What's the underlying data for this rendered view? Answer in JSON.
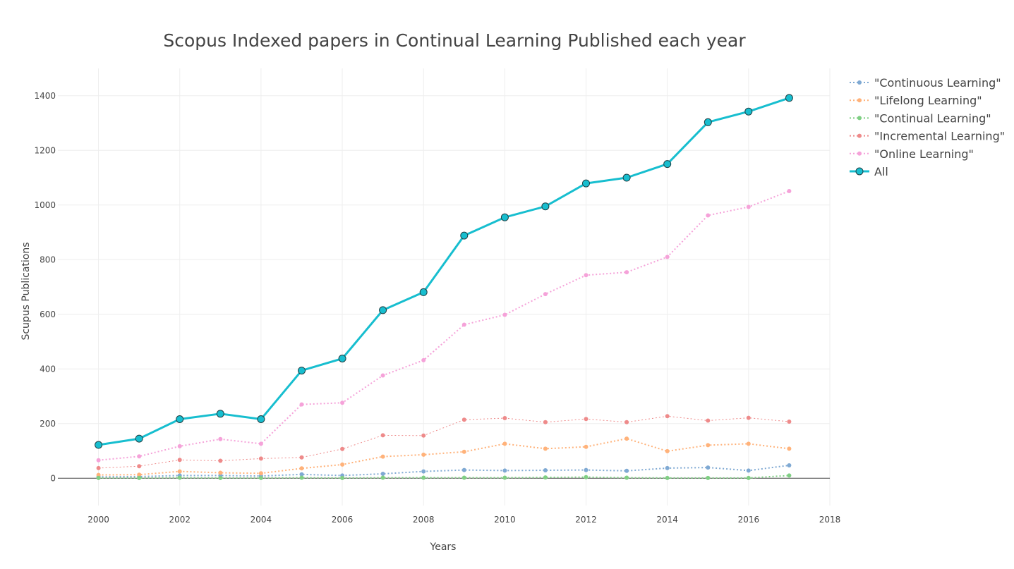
{
  "chart_data": {
    "type": "line",
    "title": "Scopus Indexed papers in Continual Learning Published each year",
    "xlabel": "Years",
    "ylabel": "Scupus Publications",
    "xlim": [
      1999,
      2018
    ],
    "ylim": [
      -100,
      1500
    ],
    "x_ticks": [
      2000,
      2002,
      2004,
      2006,
      2008,
      2010,
      2012,
      2014,
      2016,
      2018
    ],
    "y_ticks": [
      0,
      200,
      400,
      600,
      800,
      1000,
      1200,
      1400
    ],
    "grid": true,
    "legend_position": "top-right",
    "x": [
      2000,
      2001,
      2002,
      2003,
      2004,
      2005,
      2006,
      2007,
      2008,
      2009,
      2010,
      2011,
      2012,
      2013,
      2014,
      2015,
      2016,
      2017
    ],
    "series": [
      {
        "name": "\"Continuous Learning\"",
        "color": "#7fa9d3",
        "style": "dotted",
        "values": [
          5,
          6,
          10,
          10,
          8,
          14,
          10,
          16,
          25,
          30,
          28,
          29,
          30,
          27,
          37,
          39,
          28,
          47
        ]
      },
      {
        "name": "\"Lifelong Learning\"",
        "color": "#ffb27a",
        "style": "dotted",
        "values": [
          12,
          13,
          25,
          20,
          18,
          36,
          50,
          79,
          86,
          97,
          126,
          108,
          115,
          145,
          99,
          121,
          126,
          108
        ]
      },
      {
        "name": "\"Continual Learning\"",
        "color": "#7fcf83",
        "style": "dotted",
        "values": [
          1,
          1,
          2,
          1,
          1,
          2,
          1,
          2,
          2,
          2,
          2,
          3,
          4,
          2,
          1,
          1,
          1,
          10
        ]
      },
      {
        "name": "\"Incremental Learning\"",
        "color": "#ee8a8a",
        "style": "dotted",
        "values": [
          37,
          44,
          67,
          64,
          72,
          76,
          107,
          157,
          156,
          214,
          220,
          205,
          217,
          205,
          227,
          211,
          221,
          207
        ]
      },
      {
        "name": "\"Online Learning\"",
        "color": "#f5a2d9",
        "style": "dotted",
        "values": [
          66,
          80,
          117,
          143,
          126,
          270,
          276,
          376,
          432,
          562,
          598,
          674,
          743,
          754,
          810,
          962,
          993,
          1051
        ]
      },
      {
        "name": "All",
        "color": "#17becf",
        "style": "solid",
        "values": [
          122,
          145,
          216,
          236,
          216,
          394,
          438,
          615,
          681,
          888,
          955,
          995,
          1079,
          1100,
          1150,
          1303,
          1342,
          1392
        ]
      }
    ]
  }
}
